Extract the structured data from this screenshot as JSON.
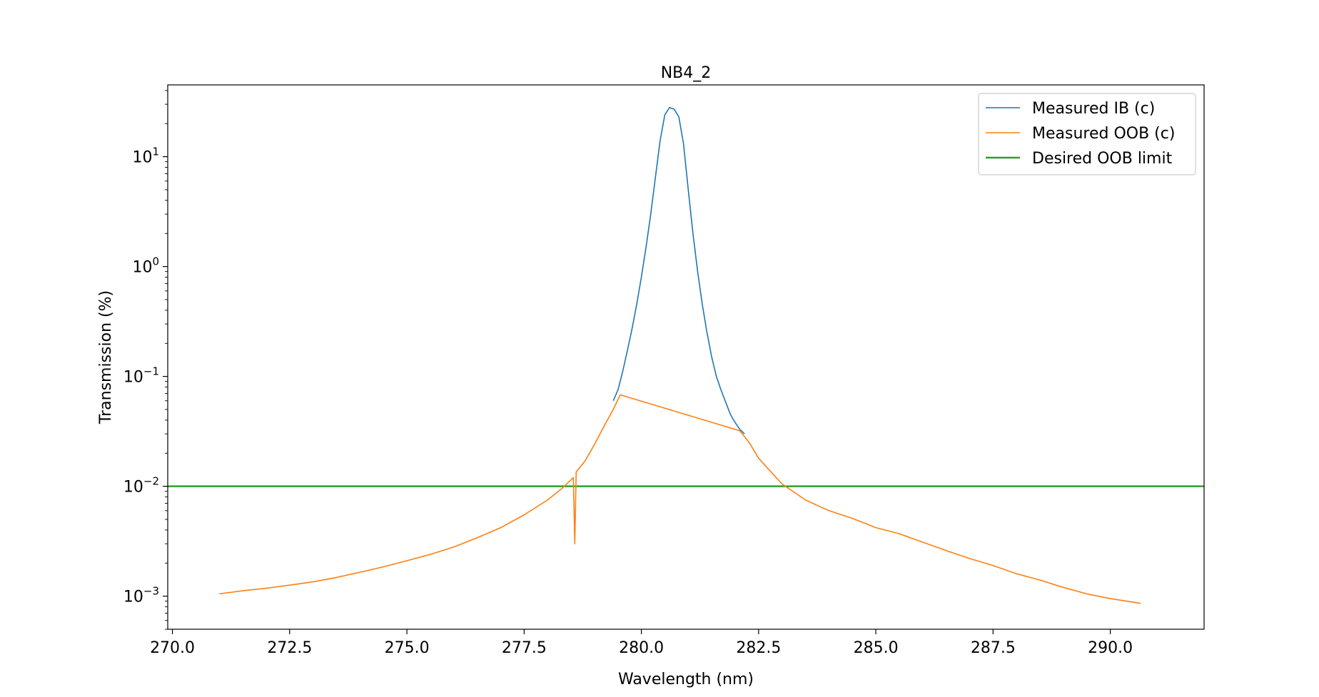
{
  "chart_data": {
    "type": "line",
    "title": "NB4_2",
    "xlabel": "Wavelength (nm)",
    "ylabel": "Transmission (%)",
    "xlim": [
      269.9,
      292.0
    ],
    "ylim": [
      0.0005,
      45
    ],
    "y_scale": "log",
    "grid": false,
    "legend_position": "top-right",
    "x_ticks": [
      {
        "value": 270.0,
        "label": "270.0"
      },
      {
        "value": 272.5,
        "label": "272.5"
      },
      {
        "value": 275.0,
        "label": "275.0"
      },
      {
        "value": 277.5,
        "label": "277.5"
      },
      {
        "value": 280.0,
        "label": "280.0"
      },
      {
        "value": 282.5,
        "label": "282.5"
      },
      {
        "value": 285.0,
        "label": "285.0"
      },
      {
        "value": 287.5,
        "label": "287.5"
      },
      {
        "value": 290.0,
        "label": "290.0"
      }
    ],
    "y_ticks": [
      {
        "value": 10,
        "base": "10",
        "exp": "1"
      },
      {
        "value": 1,
        "base": "10",
        "exp": "0"
      },
      {
        "value": 0.1,
        "base": "10",
        "exp": "−1"
      },
      {
        "value": 0.01,
        "base": "10",
        "exp": "−2"
      },
      {
        "value": 0.001,
        "base": "10",
        "exp": "−3"
      }
    ],
    "series": [
      {
        "name": "Measured IB (c)",
        "color": "#1f77b4",
        "points": [
          [
            279.4,
            0.06
          ],
          [
            279.5,
            0.075
          ],
          [
            279.6,
            0.11
          ],
          [
            279.7,
            0.17
          ],
          [
            279.8,
            0.27
          ],
          [
            279.9,
            0.45
          ],
          [
            280.0,
            0.8
          ],
          [
            280.1,
            1.5
          ],
          [
            280.2,
            3.0
          ],
          [
            280.3,
            6.5
          ],
          [
            280.4,
            14
          ],
          [
            280.5,
            24
          ],
          [
            280.6,
            28
          ],
          [
            280.7,
            27
          ],
          [
            280.8,
            23
          ],
          [
            280.9,
            13
          ],
          [
            281.0,
            5.0
          ],
          [
            281.1,
            2.0
          ],
          [
            281.2,
            0.9
          ],
          [
            281.3,
            0.45
          ],
          [
            281.4,
            0.25
          ],
          [
            281.5,
            0.15
          ],
          [
            281.6,
            0.1
          ],
          [
            281.7,
            0.075
          ],
          [
            281.8,
            0.058
          ],
          [
            281.9,
            0.045
          ],
          [
            282.0,
            0.038
          ],
          [
            282.1,
            0.033
          ],
          [
            282.2,
            0.03
          ]
        ]
      },
      {
        "name": "Measured OOB (c)",
        "color": "#ff7f0e",
        "points": [
          [
            271.0,
            0.00105
          ],
          [
            271.5,
            0.00112
          ],
          [
            272.0,
            0.00118
          ],
          [
            272.5,
            0.00126
          ],
          [
            273.0,
            0.00135
          ],
          [
            273.5,
            0.00148
          ],
          [
            274.0,
            0.00165
          ],
          [
            274.5,
            0.00185
          ],
          [
            275.0,
            0.0021
          ],
          [
            275.5,
            0.0024
          ],
          [
            276.0,
            0.0028
          ],
          [
            276.5,
            0.0034
          ],
          [
            277.0,
            0.0042
          ],
          [
            277.5,
            0.0055
          ],
          [
            278.0,
            0.0075
          ],
          [
            278.3,
            0.0095
          ],
          [
            278.55,
            0.012
          ],
          [
            278.58,
            0.003
          ],
          [
            278.61,
            0.0135
          ],
          [
            278.8,
            0.017
          ],
          [
            279.0,
            0.024
          ],
          [
            279.2,
            0.035
          ],
          [
            279.4,
            0.05
          ],
          [
            279.55,
            0.068
          ],
          [
            282.1,
            0.032
          ],
          [
            282.3,
            0.025
          ],
          [
            282.5,
            0.018
          ],
          [
            282.8,
            0.013
          ],
          [
            283.0,
            0.0105
          ],
          [
            283.5,
            0.0075
          ],
          [
            284.0,
            0.006
          ],
          [
            284.5,
            0.0051
          ],
          [
            285.0,
            0.0042
          ],
          [
            285.5,
            0.0037
          ],
          [
            286.0,
            0.0031
          ],
          [
            286.5,
            0.0026
          ],
          [
            287.0,
            0.0022
          ],
          [
            287.5,
            0.0019
          ],
          [
            288.0,
            0.0016
          ],
          [
            288.5,
            0.0014
          ],
          [
            289.0,
            0.0012
          ],
          [
            289.5,
            0.00105
          ],
          [
            290.0,
            0.00095
          ],
          [
            290.5,
            0.00088
          ],
          [
            290.65,
            0.00086
          ]
        ]
      },
      {
        "name": "Desired OOB limit",
        "color": "#2ca02c",
        "points": [
          [
            269.9,
            0.01
          ],
          [
            292.0,
            0.01
          ]
        ]
      }
    ]
  }
}
